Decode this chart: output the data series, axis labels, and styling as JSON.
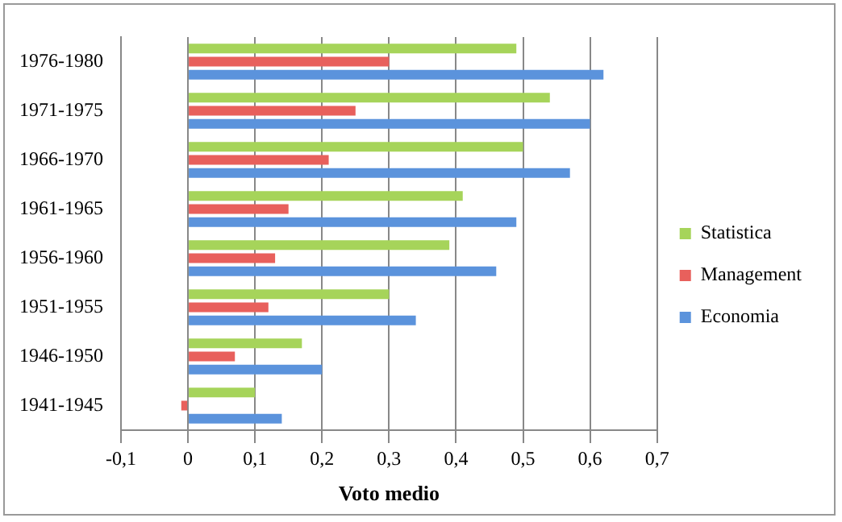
{
  "chart_data": {
    "type": "bar",
    "orientation": "horizontal",
    "xlabel": "Voto medio",
    "categories": [
      "1976-1980",
      "1971-1975",
      "1966-1970",
      "1961-1965",
      "1956-1960",
      "1951-1955",
      "1946-1950",
      "1941-1945"
    ],
    "series": [
      {
        "name": "Statistica",
        "color": "#a6d45a",
        "values": [
          0.49,
          0.54,
          0.5,
          0.41,
          0.39,
          0.3,
          0.17,
          0.1
        ]
      },
      {
        "name": "Management",
        "color": "#e8605c",
        "values": [
          0.3,
          0.25,
          0.21,
          0.15,
          0.13,
          0.12,
          0.07,
          -0.01
        ]
      },
      {
        "name": "Economia",
        "color": "#5b93dc",
        "values": [
          0.62,
          0.6,
          0.57,
          0.49,
          0.46,
          0.34,
          0.2,
          0.14
        ]
      }
    ],
    "xlim": [
      -0.1,
      0.7
    ],
    "xticks": [
      {
        "value": -0.1,
        "label": "-0,1"
      },
      0,
      {
        "value": 0.1,
        "label": "0,1"
      },
      {
        "value": 0.2,
        "label": "0,2"
      },
      {
        "value": 0.3,
        "label": "0,3"
      },
      {
        "value": 0.4,
        "label": "0,4"
      },
      {
        "value": 0.5,
        "label": "0,5"
      },
      {
        "value": 0.6,
        "label": "0,6"
      },
      {
        "value": 0.7,
        "label": "0,7"
      }
    ],
    "grid": "x",
    "legend": "right"
  }
}
